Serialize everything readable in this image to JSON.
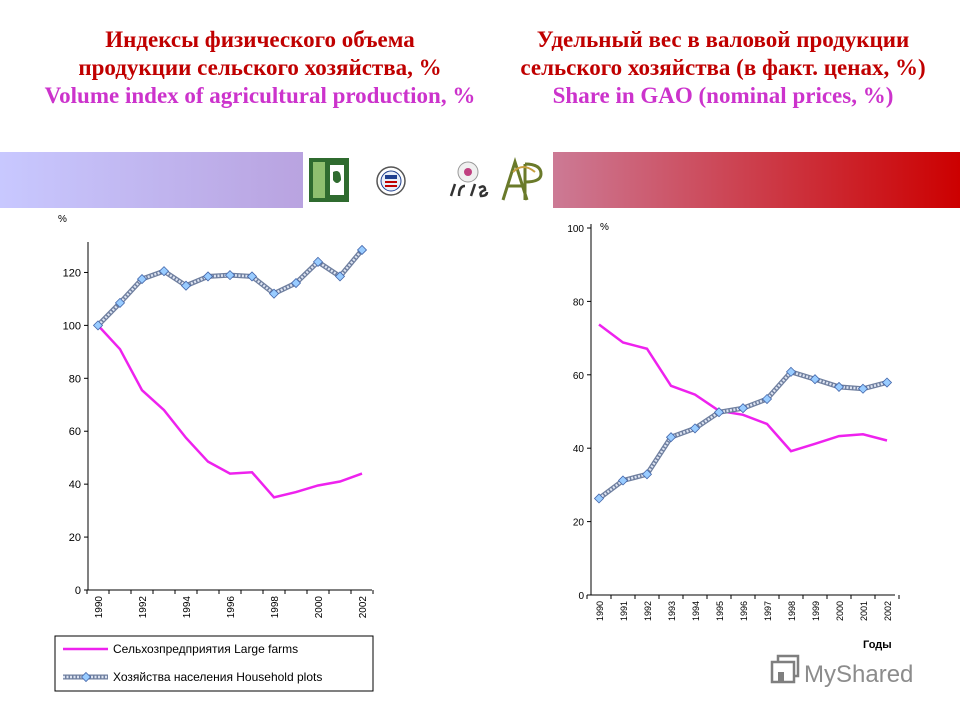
{
  "titles": {
    "left_ru_line1": "Индексы физического объема",
    "left_ru_line2": "продукции сельского хозяйства, %",
    "left_en": "Volume index of agricultural production, %",
    "right_ru_line1": "Удельный вес в валовой продукции",
    "right_ru_line2": "сельского хозяйства (в факт. ценах, %)",
    "right_en": "Share in GAO (nominal prices, %)"
  },
  "colors": {
    "title_ru": "#c00000",
    "title_en": "#cc33cc",
    "large_farms_line": "#ee22ee",
    "household_line": "#7a8aa8",
    "household_marker": "#99ccff"
  },
  "icons": [
    "book-logo-icon",
    "seal-logo-icon",
    "iris-logo-icon",
    "ap-logo-icon",
    "mymail-logo-icon"
  ],
  "watermark": {
    "text": "MyShared"
  },
  "chart_data": [
    {
      "type": "line",
      "unit_label": "%",
      "x": [
        1990,
        1991,
        1992,
        1993,
        1994,
        1995,
        1996,
        1997,
        1998,
        1999,
        2000,
        2001,
        2002
      ],
      "x_tick_labels": [
        "1990",
        "1992",
        "1994",
        "1996",
        "1998",
        "2000",
        "2002"
      ],
      "y_ticks": [
        0,
        20,
        40,
        60,
        80,
        100,
        120
      ],
      "ylim": [
        0,
        130
      ],
      "series": [
        {
          "name": "Сельхозпредприятия Large farms",
          "marker": "none",
          "values": [
            100,
            91,
            75.5,
            68,
            57.5,
            48.5,
            44,
            44.5,
            35,
            37,
            39.5,
            41,
            44
          ]
        },
        {
          "name": "Хозяйства населения Household plots",
          "marker": "diamond",
          "values": [
            100,
            108.5,
            117.5,
            120.5,
            115,
            118.5,
            119,
            118.5,
            112,
            116,
            124,
            118.5,
            128.5
          ]
        }
      ],
      "legend_position": "bottom"
    },
    {
      "type": "line",
      "unit_label": "%",
      "xlabel": "Годы",
      "x": [
        1990,
        1991,
        1992,
        1993,
        1994,
        1995,
        1996,
        1997,
        1998,
        1999,
        2000,
        2001,
        2002
      ],
      "x_tick_labels": [
        "1990",
        "1991",
        "1992",
        "1993",
        "1994",
        "1995",
        "1996",
        "1997",
        "1998",
        "1999",
        "2000",
        "2001",
        "2002"
      ],
      "y_ticks": [
        0,
        20,
        40,
        60,
        80,
        100
      ],
      "ylim": [
        0,
        100
      ],
      "series": [
        {
          "name": "Сельхозпредприятия Large farms",
          "marker": "none",
          "values": [
            73.7,
            68.8,
            67.1,
            57.0,
            54.6,
            50.2,
            49.1,
            46.6,
            39.2,
            41.2,
            43.3,
            43.8,
            42.1
          ]
        },
        {
          "name": "Хозяйства населения Household plots",
          "marker": "diamond",
          "values": [
            26.3,
            31.2,
            32.9,
            43.0,
            45.4,
            49.8,
            50.9,
            53.4,
            60.8,
            58.8,
            56.7,
            56.2,
            57.9
          ]
        }
      ]
    }
  ]
}
